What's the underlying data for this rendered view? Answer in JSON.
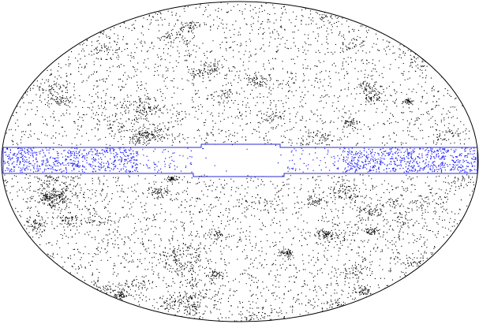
{
  "figure": {
    "projection": "Aitoff",
    "colors": {
      "background": "#ffffff",
      "outline": "#000000",
      "points": "#000000",
      "zone_points": "#1a1aff",
      "zone_outline": "#2a2ad8"
    }
  }
}
